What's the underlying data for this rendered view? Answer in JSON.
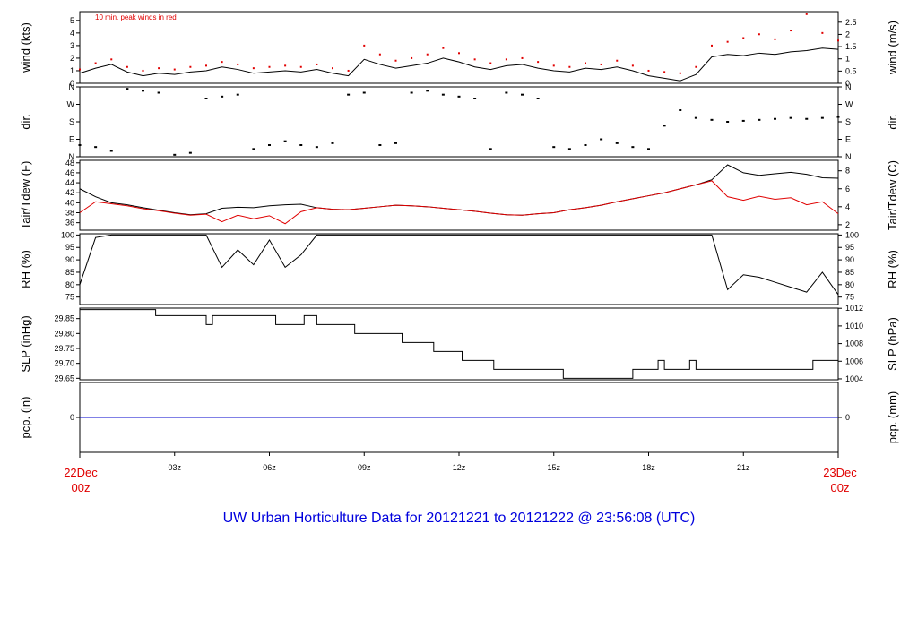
{
  "title": "UW Urban Horticulture Data for 20121221  to  20121222 @ 23:56:08  (UTC)",
  "x_ticks": [
    "03z",
    "06z",
    "09z",
    "12z",
    "15z",
    "18z",
    "21z"
  ],
  "x_start": [
    "22Dec",
    "00z"
  ],
  "x_end": [
    "23Dec",
    "00z"
  ],
  "colors": {
    "primary": "#000000",
    "secondary": "#e00000",
    "precip": "#0000cc",
    "title": "#0000dd"
  },
  "chart_data": [
    {
      "type": "line",
      "panel": "wind",
      "ylabel_left": "wind (kts)",
      "ylabel_right": "wind (m/s)",
      "ylim": [
        0,
        5.7
      ],
      "left_ticks": [
        "0",
        "1",
        "2",
        "3",
        "4",
        "5"
      ],
      "right_ticks": [
        "0",
        "0.5",
        "1",
        "1.5",
        "2",
        "2.5"
      ],
      "annotation": "10 min. peak winds in red",
      "x_hours": [
        0,
        0.5,
        1,
        1.5,
        2,
        2.5,
        3,
        3.5,
        4,
        4.5,
        5,
        5.5,
        6,
        6.5,
        7,
        7.5,
        8,
        8.5,
        9,
        9.5,
        10,
        10.5,
        11,
        11.5,
        12,
        12.5,
        13,
        13.5,
        14,
        14.5,
        15,
        15.5,
        16,
        16.5,
        17,
        17.5,
        18,
        18.5,
        19,
        19.5,
        20,
        20.5,
        21,
        21.5,
        22,
        22.5,
        23,
        23.5,
        24
      ],
      "series": [
        {
          "values": [
            0.8,
            1.2,
            1.5,
            0.9,
            0.6,
            0.8,
            0.7,
            0.9,
            1.0,
            1.3,
            1.1,
            0.8,
            0.9,
            1.0,
            0.9,
            1.1,
            0.8,
            0.6,
            1.9,
            1.5,
            1.2,
            1.4,
            1.6,
            2.0,
            1.7,
            1.3,
            1.1,
            1.4,
            1.5,
            1.2,
            1.0,
            0.9,
            1.2,
            1.1,
            1.3,
            1.0,
            0.6,
            0.4,
            0.2,
            0.7,
            2.1,
            2.3,
            2.2,
            2.4,
            2.3,
            2.5,
            2.6,
            2.8,
            2.7
          ]
        },
        {
          "values": [
            1.1,
            1.6,
            1.9,
            1.3,
            1.0,
            1.2,
            1.1,
            1.3,
            1.4,
            1.7,
            1.5,
            1.2,
            1.3,
            1.4,
            1.3,
            1.5,
            1.2,
            1.0,
            3.0,
            2.3,
            1.8,
            2.0,
            2.3,
            2.8,
            2.4,
            1.9,
            1.6,
            1.9,
            2.0,
            1.7,
            1.4,
            1.3,
            1.6,
            1.5,
            1.8,
            1.4,
            1.0,
            0.9,
            0.8,
            1.3,
            3.0,
            3.3,
            3.6,
            3.9,
            3.5,
            4.2,
            5.5,
            4.0,
            3.4
          ]
        }
      ]
    },
    {
      "type": "scatter",
      "panel": "dir",
      "ylabel_left": "dir.",
      "ylabel_right": "dir.",
      "ylim": [
        0,
        360
      ],
      "left_ticks": [
        "N",
        "E",
        "S",
        "W",
        "N"
      ],
      "right_ticks": [
        "N",
        "E",
        "S",
        "W",
        "N"
      ],
      "x_hours": [
        0,
        0.5,
        1,
        1.5,
        2,
        2.5,
        3,
        3.5,
        4,
        4.5,
        5,
        5.5,
        6,
        6.5,
        7,
        7.5,
        8,
        8.5,
        9,
        9.5,
        10,
        10.5,
        11,
        11.5,
        12,
        12.5,
        13,
        13.5,
        14,
        14.5,
        15,
        15.5,
        16,
        16.5,
        17,
        17.5,
        18,
        18.5,
        19,
        19.5,
        20,
        20.5,
        21,
        21.5,
        22,
        22.5,
        23,
        23.5,
        24
      ],
      "series": [
        {
          "values": [
            60,
            50,
            30,
            350,
            340,
            330,
            10,
            20,
            300,
            310,
            320,
            40,
            60,
            80,
            60,
            50,
            70,
            320,
            330,
            60,
            70,
            330,
            340,
            320,
            310,
            300,
            40,
            330,
            320,
            300,
            50,
            40,
            60,
            90,
            70,
            50,
            40,
            160,
            240,
            200,
            190,
            180,
            185,
            190,
            195,
            200,
            195,
            200,
            205
          ]
        }
      ]
    },
    {
      "type": "line",
      "panel": "temperature",
      "ylabel_left": "Tair/Tdew (F)",
      "ylabel_right": "Tair/Tdew (C)",
      "ylim": [
        34.5,
        48.5
      ],
      "left_ticks": [
        "36",
        "38",
        "40",
        "42",
        "44",
        "46",
        "48"
      ],
      "right_ticks": [
        "2",
        "4",
        "6",
        "8"
      ],
      "x_hours": [
        0,
        0.5,
        1,
        1.5,
        2,
        2.5,
        3,
        3.5,
        4,
        4.5,
        5,
        5.5,
        6,
        6.5,
        7,
        7.5,
        8,
        8.5,
        9,
        9.5,
        10,
        10.5,
        11,
        11.5,
        12,
        12.5,
        13,
        13.5,
        14,
        14.5,
        15,
        15.5,
        16,
        16.5,
        17,
        17.5,
        18,
        18.5,
        19,
        19.5,
        20,
        20.5,
        21,
        21.5,
        22,
        22.5,
        23,
        23.5,
        24
      ],
      "series": [
        {
          "name": "Tair",
          "values": [
            42.8,
            41.2,
            40.0,
            39.6,
            39.0,
            38.5,
            38.0,
            37.6,
            37.8,
            38.9,
            39.1,
            39.0,
            39.4,
            39.6,
            39.7,
            39.0,
            38.7,
            38.6,
            38.9,
            39.2,
            39.5,
            39.4,
            39.2,
            38.9,
            38.6,
            38.3,
            37.9,
            37.6,
            37.5,
            37.8,
            38.0,
            38.6,
            39.0,
            39.5,
            40.2,
            40.8,
            41.4,
            42.0,
            42.8,
            43.6,
            44.6,
            47.6,
            46.0,
            45.5,
            45.8,
            46.1,
            45.7,
            45.0,
            44.9
          ]
        },
        {
          "name": "Tdew",
          "values": [
            38.0,
            40.2,
            39.8,
            39.4,
            38.8,
            38.4,
            37.9,
            37.5,
            37.7,
            36.2,
            37.5,
            36.8,
            37.4,
            35.8,
            38.2,
            39.0,
            38.7,
            38.6,
            38.9,
            39.2,
            39.5,
            39.4,
            39.2,
            38.9,
            38.6,
            38.3,
            37.9,
            37.6,
            37.5,
            37.8,
            38.0,
            38.6,
            39.0,
            39.5,
            40.2,
            40.8,
            41.4,
            42.0,
            42.8,
            43.6,
            44.4,
            41.2,
            40.5,
            41.3,
            40.7,
            41.0,
            39.6,
            40.2,
            37.8
          ]
        }
      ]
    },
    {
      "type": "line",
      "panel": "rh",
      "ylabel_left": "RH (%)",
      "ylabel_right": "RH (%)",
      "ylim": [
        72,
        100.5
      ],
      "left_ticks": [
        "75",
        "80",
        "85",
        "90",
        "95",
        "100"
      ],
      "right_ticks": [
        "75",
        "80",
        "85",
        "90",
        "95",
        "100"
      ],
      "x_hours": [
        0,
        0.5,
        1,
        1.5,
        2,
        2.5,
        3,
        3.5,
        4,
        4.5,
        5,
        5.5,
        6,
        6.5,
        7,
        7.5,
        8,
        8.5,
        9,
        9.5,
        10,
        10.5,
        11,
        11.5,
        12,
        12.5,
        13,
        13.5,
        14,
        14.5,
        15,
        15.5,
        16,
        16.5,
        17,
        17.5,
        18,
        18.5,
        19,
        19.5,
        20,
        20.5,
        21,
        21.5,
        22,
        22.5,
        23,
        23.5,
        24
      ],
      "series": [
        {
          "values": [
            80,
            99,
            100,
            100,
            100,
            100,
            100,
            100,
            100,
            87,
            94,
            88,
            98,
            87,
            92,
            100,
            100,
            100,
            100,
            100,
            100,
            100,
            100,
            100,
            100,
            100,
            100,
            100,
            100,
            100,
            100,
            100,
            100,
            100,
            100,
            100,
            100,
            100,
            100,
            100,
            100,
            78,
            84,
            83,
            81,
            79,
            77,
            85,
            76
          ]
        }
      ]
    },
    {
      "type": "line",
      "panel": "slp",
      "ylabel_left": "SLP (inHg)",
      "ylabel_right": "SLP (hPa)",
      "ylim": [
        29.645,
        29.885
      ],
      "left_ticks": [
        "29.65",
        "29.70",
        "29.75",
        "29.80",
        "29.85"
      ],
      "right_ticks": [
        "1004",
        "1006",
        "1008",
        "1010",
        "1012"
      ],
      "x_hours": [
        0,
        2.4,
        4.0,
        4.2,
        6.2,
        7.1,
        7.5,
        8.7,
        10.2,
        11.2,
        12.1,
        13.1,
        15.3,
        17.5,
        18.3,
        18.5,
        19.3,
        19.5,
        23.2,
        24
      ],
      "series": [
        {
          "values": [
            29.88,
            29.86,
            29.83,
            29.86,
            29.83,
            29.86,
            29.83,
            29.8,
            29.77,
            29.74,
            29.71,
            29.68,
            29.65,
            29.68,
            29.71,
            29.68,
            29.71,
            29.68,
            29.71,
            29.71
          ]
        }
      ]
    },
    {
      "type": "line",
      "panel": "precip",
      "ylabel_left": "pcp. (in)",
      "ylabel_right": "pcp. (mm)",
      "ylim": [
        -1,
        1
      ],
      "left_ticks": [
        "0"
      ],
      "right_ticks": [
        "0"
      ],
      "x_hours": [
        0,
        24
      ],
      "series": [
        {
          "values": [
            0,
            0
          ]
        }
      ]
    }
  ]
}
